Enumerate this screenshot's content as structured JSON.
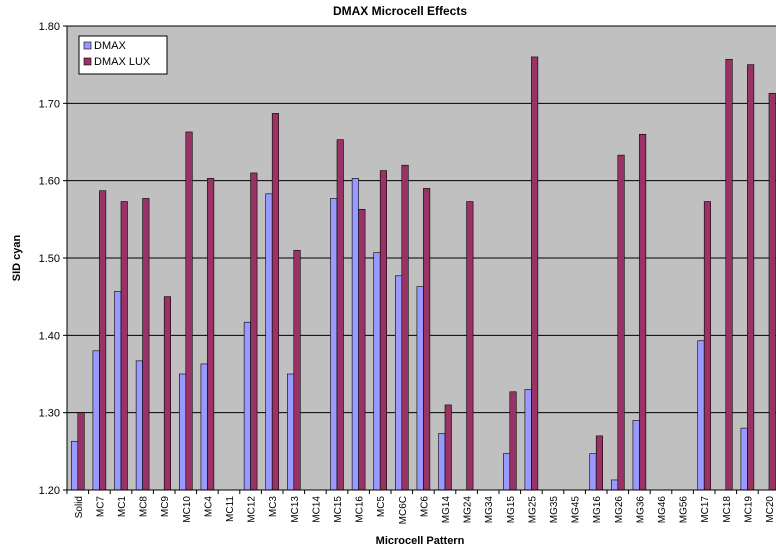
{
  "chart_data": {
    "type": "bar",
    "title": "DMAX Microcell Effects",
    "x_label": "Microcell Pattern",
    "y_label": "SID cyan",
    "categories": [
      "Solid",
      "MC7",
      "MC1",
      "MC8",
      "MC9",
      "MC10",
      "MC4",
      "MC11",
      "MC12",
      "MC3",
      "MC13",
      "MC14",
      "MC15",
      "MC16",
      "MC5",
      "MC6C",
      "MC6",
      "MG14",
      "MG24",
      "MG34",
      "MG15",
      "MG25",
      "MG35",
      "MG45",
      "MG16",
      "MG26",
      "MG36",
      "MG46",
      "MG56",
      "MC17",
      "MC18",
      "MC19",
      "MC20"
    ],
    "series": [
      {
        "name": "DMAX",
        "color": "#9999ff",
        "values": [
          1.263,
          1.38,
          1.457,
          1.367,
          null,
          1.35,
          1.363,
          null,
          1.417,
          1.583,
          1.35,
          null,
          1.577,
          1.603,
          1.507,
          1.477,
          1.463,
          1.273,
          null,
          null,
          1.247,
          1.33,
          null,
          null,
          1.247,
          1.213,
          1.29,
          null,
          null,
          1.393,
          null,
          1.28,
          null
        ]
      },
      {
        "name": "DMAX LUX",
        "color": "#993366",
        "values": [
          1.3,
          1.587,
          1.573,
          1.577,
          1.45,
          1.663,
          1.603,
          null,
          1.61,
          1.687,
          1.51,
          null,
          1.653,
          1.563,
          1.613,
          1.62,
          1.59,
          1.31,
          1.573,
          null,
          1.327,
          1.76,
          null,
          null,
          1.27,
          1.633,
          1.66,
          null,
          null,
          1.573,
          1.757,
          1.75,
          1.713
        ]
      }
    ],
    "ylim": [
      1.2,
      1.8
    ],
    "yticks": [
      {
        "value": 1.2,
        "label": "1.20"
      },
      {
        "value": 1.3,
        "label": "1.30"
      },
      {
        "value": 1.4,
        "label": "1.40"
      },
      {
        "value": 1.5,
        "label": "1.50"
      },
      {
        "value": 1.6,
        "label": "1.60"
      },
      {
        "value": 1.7,
        "label": "1.70"
      },
      {
        "value": 1.8,
        "label": "1.80"
      }
    ],
    "grid": true,
    "legend": "top-left",
    "background": "#c0c0c0"
  }
}
